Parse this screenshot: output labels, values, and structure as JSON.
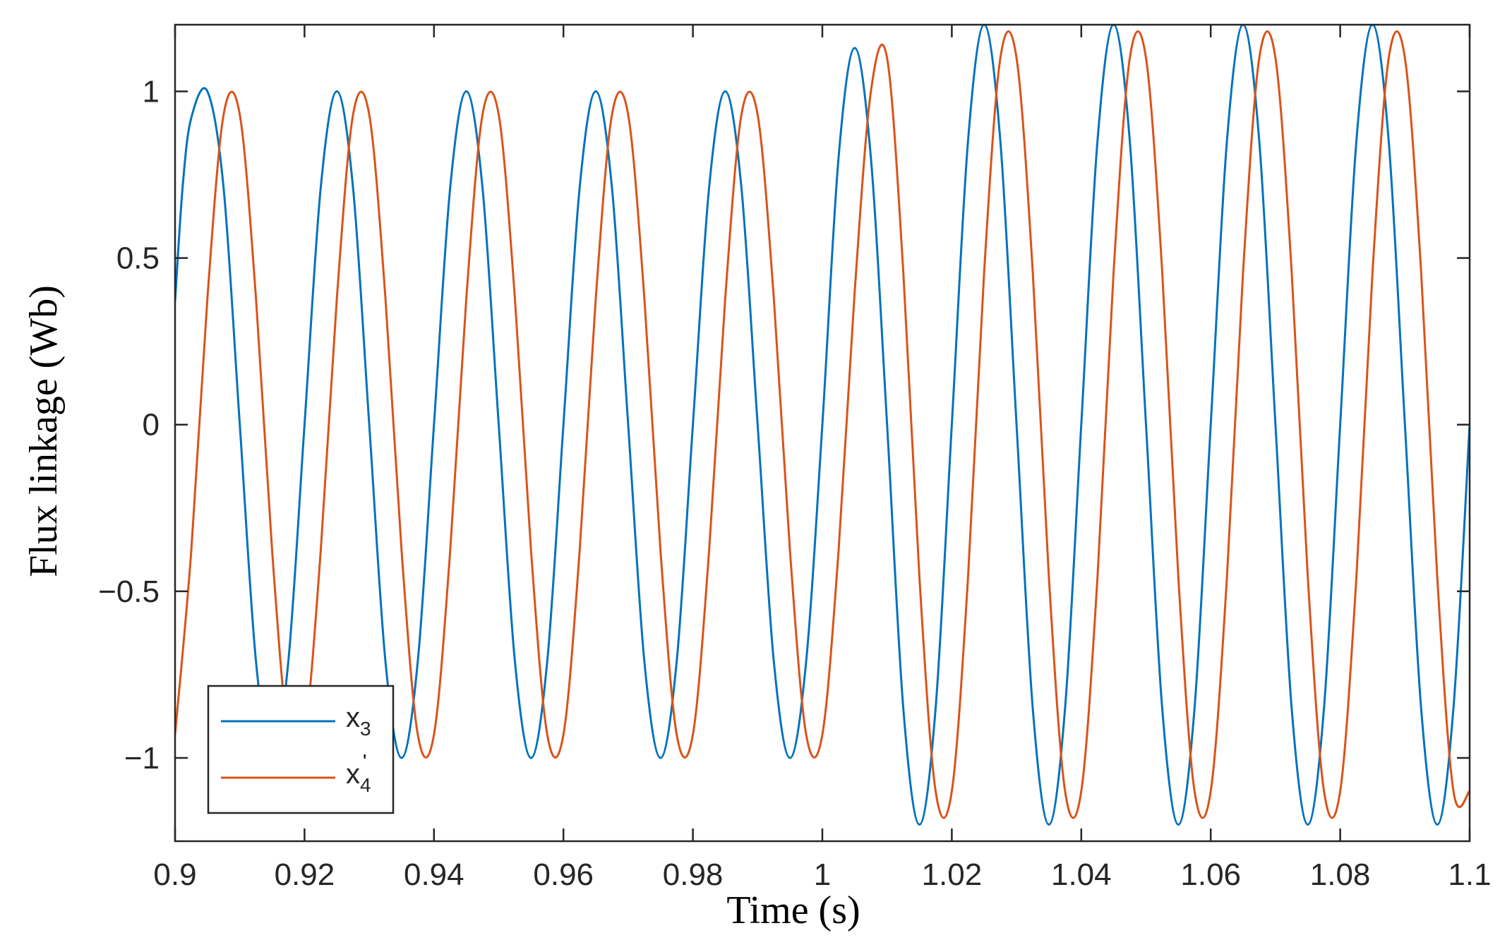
{
  "chart_data": {
    "type": "line",
    "title": "",
    "xlabel": "Time (s)",
    "ylabel": "Flux linkage (Wb)",
    "xlim": [
      0.9,
      1.1
    ],
    "ylim": [
      -1.25,
      1.2
    ],
    "xticks": [
      0.9,
      0.92,
      0.94,
      0.96,
      0.98,
      1.0,
      1.02,
      1.04,
      1.06,
      1.08,
      1.1
    ],
    "xtick_labels": [
      "0.9",
      "0.92",
      "0.94",
      "0.96",
      "0.98",
      "1",
      "1.02",
      "1.04",
      "1.06",
      "1.08",
      "1.1"
    ],
    "yticks": [
      -1,
      -0.5,
      0,
      0.5,
      1
    ],
    "ytick_labels": [
      "−1",
      "−0.5",
      "0",
      "0.5",
      "1"
    ],
    "grid": false,
    "legend_position": "bottom-left",
    "series": [
      {
        "name": "x3",
        "legend_base": "x",
        "legend_sub": "3",
        "legend_mark": "",
        "color": "#0072BD",
        "x": [
          0.9,
          0.9012,
          0.9025,
          0.905,
          0.9075,
          0.91,
          0.9125,
          0.915,
          0.9175,
          0.92,
          0.9225,
          0.925,
          0.9275,
          0.93,
          0.9325,
          0.935,
          0.9375,
          0.94,
          0.9425,
          0.945,
          0.9475,
          0.95,
          0.9525,
          0.955,
          0.9575,
          0.96,
          0.9625,
          0.965,
          0.9675,
          0.97,
          0.9725,
          0.975,
          0.9775,
          0.98,
          0.9825,
          0.985,
          0.9875,
          0.99,
          0.9925,
          0.995,
          0.9975,
          1.0,
          1.0025,
          1.005,
          1.0075,
          1.01,
          1.0125,
          1.015,
          1.0175,
          1.02,
          1.0225,
          1.025,
          1.0275,
          1.03,
          1.0325,
          1.035,
          1.0375,
          1.04,
          1.0425,
          1.045,
          1.0475,
          1.05,
          1.0525,
          1.055,
          1.0575,
          1.06,
          1.0625,
          1.065,
          1.0675,
          1.07,
          1.0725,
          1.075,
          1.0775,
          1.08,
          1.0825,
          1.085,
          1.0875,
          1.09,
          1.0925,
          1.095,
          1.0975,
          1.1
        ],
        "y": [
          0.37,
          0.72,
          0.92,
          1.0,
          0.71,
          0.0,
          -0.71,
          -1.0,
          -0.71,
          0.0,
          0.71,
          1.0,
          0.71,
          0.0,
          -0.71,
          -1.0,
          -0.71,
          0.0,
          0.71,
          1.0,
          0.71,
          0.0,
          -0.71,
          -1.0,
          -0.71,
          0.0,
          0.71,
          1.0,
          0.71,
          0.0,
          -0.71,
          -1.0,
          -0.71,
          0.0,
          0.71,
          1.0,
          0.71,
          0.0,
          -0.71,
          -1.0,
          -0.71,
          0.0,
          0.8,
          1.13,
          0.8,
          0.0,
          -0.85,
          -1.2,
          -0.85,
          0.0,
          0.85,
          1.2,
          0.85,
          0.0,
          -0.85,
          -1.2,
          -0.85,
          0.0,
          0.85,
          1.2,
          0.85,
          0.0,
          -0.85,
          -1.2,
          -0.85,
          0.0,
          0.85,
          1.2,
          0.85,
          0.0,
          -0.85,
          -1.2,
          -0.85,
          0.0,
          0.85,
          1.2,
          0.85,
          0.0,
          -0.85,
          -1.2,
          -0.85,
          0.0
        ]
      },
      {
        "name": "x4'",
        "legend_base": "x",
        "legend_sub": "4",
        "legend_mark": "'",
        "color": "#D95319",
        "x": [
          0.9,
          0.9025,
          0.905,
          0.9075,
          0.91,
          0.9125,
          0.915,
          0.9175,
          0.92,
          0.9225,
          0.925,
          0.9275,
          0.93,
          0.9325,
          0.935,
          0.9375,
          0.94,
          0.9425,
          0.945,
          0.9475,
          0.95,
          0.9525,
          0.955,
          0.9575,
          0.96,
          0.9625,
          0.965,
          0.9675,
          0.97,
          0.9725,
          0.975,
          0.9775,
          0.98,
          0.9825,
          0.985,
          0.9875,
          0.99,
          0.9925,
          0.995,
          0.9975,
          1.0,
          1.0025,
          1.005,
          1.0075,
          1.01,
          1.0125,
          1.015,
          1.0175,
          1.02,
          1.0225,
          1.025,
          1.0275,
          1.03,
          1.0325,
          1.035,
          1.0375,
          1.04,
          1.0425,
          1.045,
          1.0475,
          1.05,
          1.0525,
          1.055,
          1.0575,
          1.06,
          1.0625,
          1.065,
          1.0675,
          1.07,
          1.0725,
          1.075,
          1.0775,
          1.08,
          1.0825,
          1.085,
          1.0875,
          1.09,
          1.0925,
          1.095,
          1.0975,
          1.1
        ],
        "y": [
          -0.93,
          -0.38,
          0.38,
          0.93,
          0.93,
          0.38,
          -0.38,
          -0.93,
          -0.93,
          -0.38,
          0.38,
          0.93,
          0.93,
          0.38,
          -0.38,
          -0.93,
          -0.93,
          -0.38,
          0.38,
          0.93,
          0.93,
          0.38,
          -0.38,
          -0.93,
          -0.93,
          -0.38,
          0.38,
          0.93,
          0.93,
          0.38,
          -0.38,
          -0.93,
          -0.93,
          -0.38,
          0.38,
          0.93,
          0.93,
          0.38,
          -0.38,
          -0.93,
          -0.93,
          -0.38,
          0.4,
          1.0,
          1.1,
          0.46,
          -0.46,
          -1.1,
          -1.1,
          -0.46,
          0.46,
          1.1,
          1.1,
          0.46,
          -0.46,
          -1.1,
          -1.1,
          -0.46,
          0.46,
          1.1,
          1.1,
          0.46,
          -0.46,
          -1.1,
          -1.1,
          -0.46,
          0.46,
          1.1,
          1.1,
          0.46,
          -0.46,
          -1.1,
          -1.1,
          -0.46,
          0.46,
          1.1,
          1.1,
          0.46,
          -0.46,
          -1.1,
          -1.1
        ]
      }
    ]
  }
}
